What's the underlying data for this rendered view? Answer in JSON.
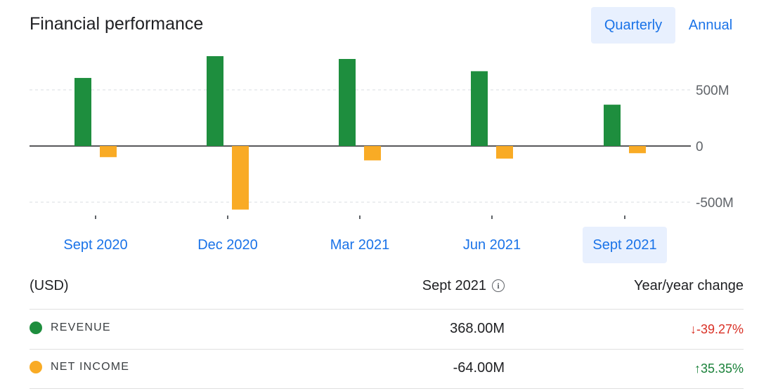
{
  "title": "Financial performance",
  "toggles": {
    "quarterly": "Quarterly",
    "annual": "Annual",
    "selected": "quarterly"
  },
  "colors": {
    "revenue": "#1e8e3e",
    "net_income": "#f9ab25",
    "accent": "#1a73e8",
    "selected_bg": "#e8f0fe",
    "negative_change": "#d93025",
    "positive_change": "#188038"
  },
  "chart_data": {
    "type": "bar",
    "categories": [
      "Sept 2020",
      "Dec 2020",
      "Mar 2021",
      "Jun 2021",
      "Sept 2021"
    ],
    "series": [
      {
        "name": "REVENUE",
        "values": [
          606,
          800,
          775,
          666,
          368
        ]
      },
      {
        "name": "NET INCOME",
        "values": [
          -99,
          -566,
          -128,
          -112,
          -64
        ]
      }
    ],
    "yticks": [
      500,
      0,
      -500
    ],
    "ytick_labels": [
      "500M",
      "0",
      "-500M"
    ],
    "ylim": [
      -630,
      870
    ],
    "grid": true,
    "selected_category": "Sept 2021"
  },
  "table": {
    "header_label": "(USD)",
    "header_period": "Sept 2021",
    "header_change": "Year/year change",
    "rows": [
      {
        "label": "REVENUE",
        "value": "368.00M",
        "change": "-39.27%",
        "direction": "down"
      },
      {
        "label": "NET INCOME",
        "value": "-64.00M",
        "change": "35.35%",
        "direction": "up"
      }
    ]
  }
}
